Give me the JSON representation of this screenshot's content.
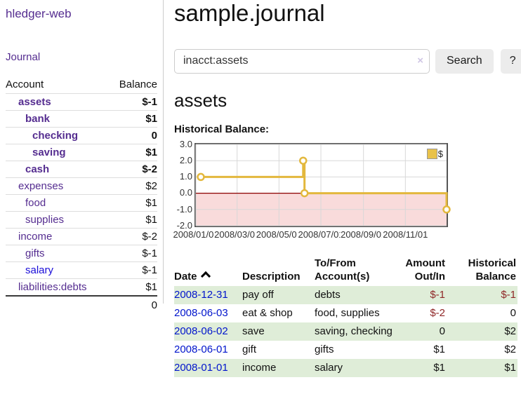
{
  "sidebar": {
    "brand": "hledger-web",
    "nav": {
      "journal_label": "Journal"
    },
    "accounts_table": {
      "headers": {
        "account": "Account",
        "balance": "Balance"
      },
      "rows": [
        {
          "name": "assets",
          "depth": 1,
          "bold": true,
          "balance": "$-1",
          "balance_style": "neg-strong"
        },
        {
          "name": "bank",
          "depth": 2,
          "bold": true,
          "balance": "$1",
          "balance_style": "plain"
        },
        {
          "name": "checking",
          "depth": 3,
          "bold": true,
          "balance": "0",
          "balance_style": "plain"
        },
        {
          "name": "saving",
          "depth": 3,
          "bold": true,
          "balance": "$1",
          "balance_style": "plain"
        },
        {
          "name": "cash",
          "depth": 2,
          "bold": true,
          "balance": "$-2",
          "balance_style": "neg-strong"
        },
        {
          "name": "expenses",
          "depth": 1,
          "bold": false,
          "balance": "$2",
          "balance_style": "plain"
        },
        {
          "name": "food",
          "depth": 2,
          "bold": false,
          "balance": "$1",
          "balance_style": "plain"
        },
        {
          "name": "supplies",
          "depth": 2,
          "bold": false,
          "balance": "$1",
          "balance_style": "plain"
        },
        {
          "name": "income",
          "depth": 1,
          "bold": false,
          "balance": "$-2",
          "balance_style": "neg-soft"
        },
        {
          "name": "gifts",
          "depth": 2,
          "bold": false,
          "balance": "$-1",
          "balance_style": "neg-soft"
        },
        {
          "name": "salary",
          "depth": 2,
          "bold": false,
          "balance": "$-1",
          "balance_style": "neg-soft",
          "link_style": "unvisited"
        },
        {
          "name": "liabilities:debts",
          "depth": 1,
          "bold": false,
          "balance": "$1",
          "balance_style": "plain"
        }
      ],
      "total": "0"
    }
  },
  "header": {
    "title": "sample.journal"
  },
  "search": {
    "query": "inacct:assets",
    "search_label": "Search",
    "help_label": "?"
  },
  "icons": {
    "clear_search": "×",
    "date_sort": "chevron-up"
  },
  "account_page": {
    "heading": "assets",
    "chart_title": "Historical Balance:"
  },
  "chart_data": {
    "type": "line",
    "step": true,
    "title": "Historical Balance:",
    "series": [
      {
        "name": "$",
        "points": [
          [
            "2008-01-01",
            1
          ],
          [
            "2008-06-01",
            2
          ],
          [
            "2008-06-03",
            0
          ],
          [
            "2008-12-31",
            -1
          ]
        ]
      }
    ],
    "x_range": [
      "2008-01-01",
      "2008-12-31"
    ],
    "x_ticks": [
      "2008/01/01",
      "2008/03/01",
      "2008/05/01",
      "2008/07/01",
      "2008/09/01",
      "2008/11/01"
    ],
    "y_ticks": [
      3,
      2,
      1,
      0,
      -1,
      -2
    ],
    "ylim": [
      -2,
      3
    ],
    "grid": true,
    "legend_position": "top-right",
    "negative_region_shaded": true
  },
  "register_table": {
    "headers": {
      "date": "Date",
      "description": "Description",
      "accounts": "To/From Account(s)",
      "amount": "Amount Out/In",
      "balance": "Historical Balance"
    },
    "rows": [
      {
        "date": "2008-12-31",
        "description": "pay off",
        "accounts": "debts",
        "amount": "$-1",
        "amount_negative": true,
        "balance": "$-1",
        "balance_negative": true,
        "shaded": true
      },
      {
        "date": "2008-06-03",
        "description": "eat & shop",
        "accounts": "food, supplies",
        "amount": "$-2",
        "amount_negative": true,
        "balance": "0",
        "balance_negative": false,
        "shaded": false
      },
      {
        "date": "2008-06-02",
        "description": "save",
        "accounts": "saving, checking",
        "amount": "0",
        "amount_negative": false,
        "balance": "$2",
        "balance_negative": false,
        "shaded": true
      },
      {
        "date": "2008-06-01",
        "description": "gift",
        "accounts": "gifts",
        "amount": "$1",
        "amount_negative": false,
        "balance": "$2",
        "balance_negative": false,
        "shaded": false
      },
      {
        "date": "2008-01-01",
        "description": "income",
        "accounts": "salary",
        "amount": "$1",
        "amount_negative": false,
        "balance": "$1",
        "balance_negative": false,
        "shaded": true
      }
    ]
  },
  "colors": {
    "link_purple": "#552d90",
    "link_blue": "#1a0dd8",
    "date_link_blue": "#0014cc",
    "negative_strong": "#8f2727",
    "negative_soft": "#c98f8f",
    "row_shade_green": "#dfedd8",
    "series_gold": "#e3b83d",
    "series_gold_fill": "#e9c24a",
    "negative_region_pink": "#f9dbdb",
    "zero_line_red": "#8b0000",
    "gridline_gray": "#d8d8d8",
    "chart_border": "#555555",
    "button_gray": "#ececec"
  }
}
